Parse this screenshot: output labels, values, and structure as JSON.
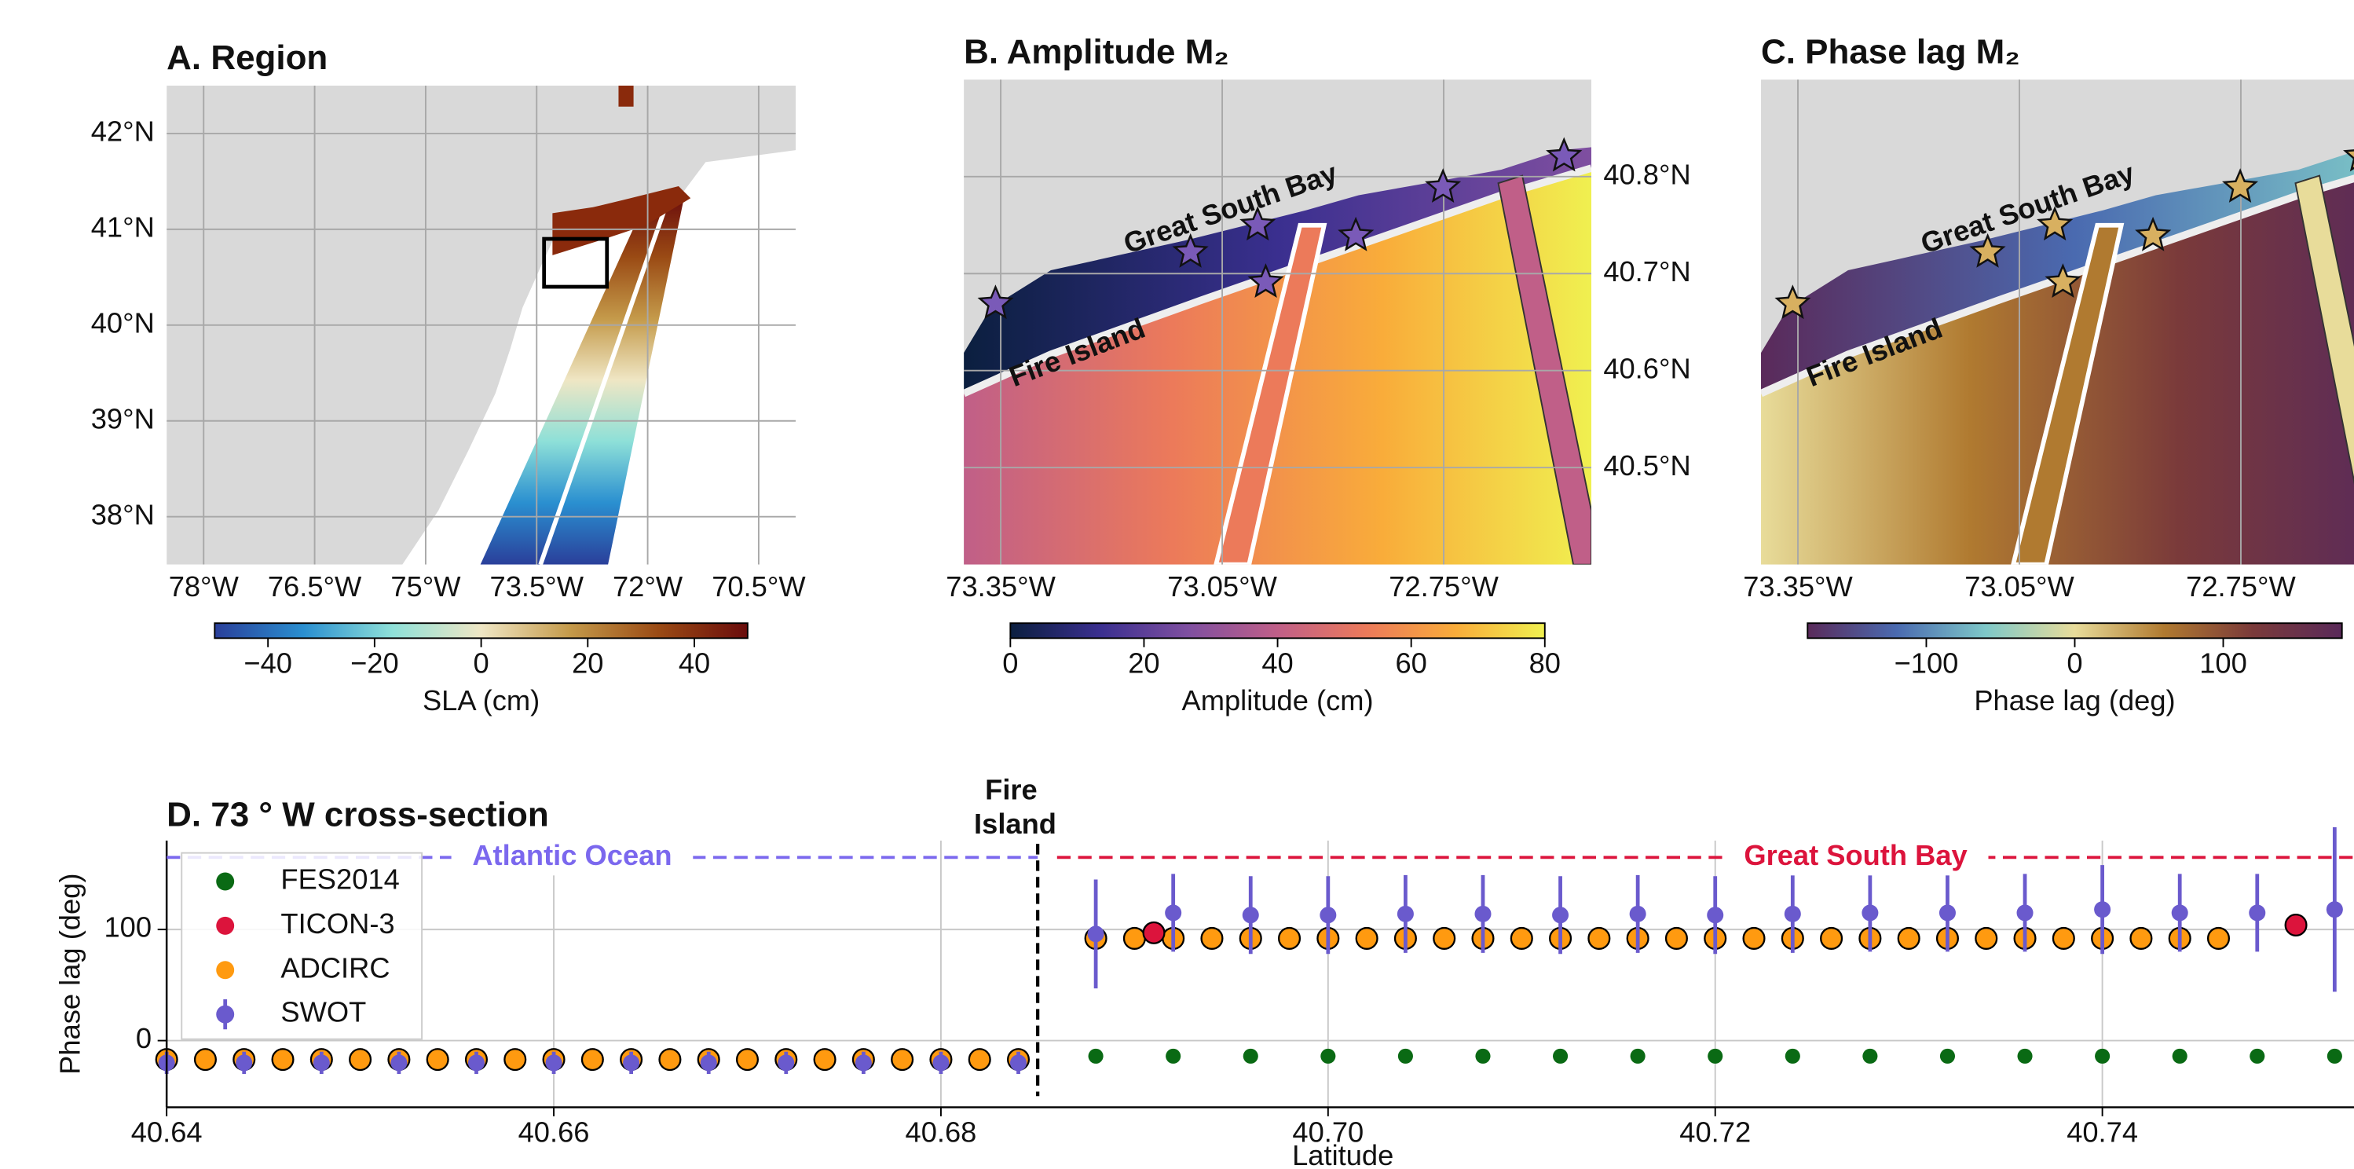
{
  "chart_data": [
    {
      "type": "map",
      "title": "A. Region",
      "xlim": [
        -78.5,
        -70
      ],
      "ylim": [
        37.5,
        42.5
      ],
      "xticks": [
        {
          "value": -78,
          "label": "78°W"
        },
        {
          "value": -76.5,
          "label": "76.5°W"
        },
        {
          "value": -75,
          "label": "75°W"
        },
        {
          "value": -73.5,
          "label": "73.5°W"
        },
        {
          "value": -72,
          "label": "72°W"
        },
        {
          "value": -70.5,
          "label": "70.5°W"
        }
      ],
      "yticks": [
        {
          "value": 42,
          "label": "42°N"
        },
        {
          "value": 41,
          "label": "41°N"
        },
        {
          "value": 40,
          "label": "40°N"
        },
        {
          "value": 39,
          "label": "39°N"
        },
        {
          "value": 38,
          "label": "38°N"
        }
      ],
      "colorbar_label": "SLA (cm)",
      "clim": [
        -50,
        50
      ],
      "cticks": [
        {
          "value": -40,
          "label": "−40"
        },
        {
          "value": -20,
          "label": "−20"
        },
        0,
        20,
        40
      ],
      "colormap": [
        "#2a3f9a",
        "#2a8fd0",
        "#8ee0d8",
        "#efe6c4",
        "#c49a4a",
        "#9a4a14",
        "#6a0c0c"
      ]
    },
    {
      "type": "map",
      "title": "B. Amplitude M₂",
      "xlim": [
        -73.4,
        -72.55
      ],
      "ylim": [
        40.4,
        40.9
      ],
      "xticks": [
        {
          "value": -73.35,
          "label": "73.35°W"
        },
        {
          "value": -73.05,
          "label": "73.05°W"
        },
        {
          "value": -72.75,
          "label": "72.75°W"
        }
      ],
      "yticks": [
        {
          "value": 40.8,
          "label": "40.8°N"
        },
        {
          "value": 40.7,
          "label": "40.7°N"
        },
        {
          "value": 40.6,
          "label": "40.6°N"
        },
        {
          "value": 40.5,
          "label": "40.5°N"
        }
      ],
      "colorbar_label": "Amplitude (cm)",
      "clim": [
        0,
        80
      ],
      "cticks": [
        0,
        20,
        40,
        60,
        80
      ],
      "colormap": [
        "#0b1f3f",
        "#3a2f8f",
        "#7f4fa0",
        "#c05f88",
        "#ec7a5a",
        "#f9ac3a",
        "#f0f050"
      ],
      "annotations": [
        "Great South Bay",
        "Fire Island"
      ],
      "stations": {
        "lon": [
          -73.357,
          -73.093,
          -73.002,
          -72.991,
          -72.869,
          -72.751,
          -72.587
        ],
        "lat": [
          40.669,
          40.722,
          40.75,
          40.691,
          40.739,
          40.789,
          40.821
        ]
      },
      "station_color": "#7a5ab8"
    },
    {
      "type": "map",
      "title": "C. Phase lag M₂",
      "xlim": [
        -73.4,
        -72.55
      ],
      "ylim": [
        40.4,
        40.9
      ],
      "xticks": [
        {
          "value": -73.35,
          "label": "73.35°W"
        },
        {
          "value": -73.05,
          "label": "73.05°W"
        },
        {
          "value": -72.75,
          "label": "72.75°W"
        }
      ],
      "colorbar_label": "Phase lag (deg)",
      "clim": [
        -180,
        180
      ],
      "cticks": [
        {
          "value": -100,
          "label": "−100"
        },
        0,
        100
      ],
      "colormap": [
        "#5a2a5a",
        "#4a6ab0",
        "#7ec8c8",
        "#e8dc9a",
        "#b07a30",
        "#7a3a3a",
        "#5a2a5a"
      ],
      "annotations": [
        "Great South Bay",
        "Fire Island"
      ],
      "stations": {
        "lon": [
          -73.357,
          -73.093,
          -73.002,
          -72.991,
          -72.869,
          -72.751,
          -72.587
        ],
        "lat": [
          40.669,
          40.722,
          40.75,
          40.691,
          40.739,
          40.789,
          40.821
        ]
      },
      "station_color": "#d8b060"
    },
    {
      "type": "scatter",
      "title": "D. 73 ° W cross-section",
      "xlabel": "Latitude",
      "ylabel": "Phase lag (deg)",
      "xlim": [
        40.64,
        40.753
      ],
      "ylim": [
        -60,
        180
      ],
      "xticks": [
        {
          "value": 40.64,
          "label": "40.64"
        },
        {
          "value": 40.66,
          "label": "40.66"
        },
        {
          "value": 40.68,
          "label": "40.68"
        },
        {
          "value": 40.7,
          "label": "40.70"
        },
        {
          "value": 40.72,
          "label": "40.72"
        },
        {
          "value": 40.74,
          "label": "40.74"
        }
      ],
      "yticks": [
        0,
        100
      ],
      "grid": true,
      "legend": "upper left",
      "divider": {
        "x": 40.685,
        "label": "Fire Island"
      },
      "regions": [
        {
          "label": "Atlantic Ocean",
          "color": "#7b68ee",
          "from": 40.64,
          "to": 40.685
        },
        {
          "label": "Great South Bay",
          "color": "#dc143c",
          "from": 40.686,
          "to": 40.753
        }
      ],
      "series": [
        {
          "name": "FES2014",
          "color": "#0a6a14",
          "x": [
            40.688,
            40.692,
            40.696,
            40.7,
            40.704,
            40.708,
            40.712,
            40.716,
            40.72,
            40.724,
            40.728,
            40.732,
            40.736,
            40.74,
            40.744,
            40.748,
            40.752
          ],
          "values": [
            -14,
            -14,
            -14,
            -14,
            -14,
            -14,
            -14,
            -14,
            -14,
            -14,
            -14,
            -14,
            -14,
            -14,
            -14,
            -14,
            -14
          ]
        },
        {
          "name": "TICON-3",
          "color": "#dc143c",
          "x": [
            40.691,
            40.75
          ],
          "values": [
            97,
            104
          ]
        },
        {
          "name": "ADCIRC",
          "color": "#ff9a10",
          "x": [
            40.64,
            40.642,
            40.644,
            40.646,
            40.648,
            40.65,
            40.652,
            40.654,
            40.656,
            40.658,
            40.66,
            40.662,
            40.664,
            40.666,
            40.668,
            40.67,
            40.672,
            40.674,
            40.676,
            40.678,
            40.68,
            40.682,
            40.684,
            40.688,
            40.69,
            40.692,
            40.694,
            40.696,
            40.698,
            40.7,
            40.702,
            40.704,
            40.706,
            40.708,
            40.71,
            40.712,
            40.714,
            40.716,
            40.718,
            40.72,
            40.722,
            40.724,
            40.726,
            40.728,
            40.73,
            40.732,
            40.734,
            40.736,
            40.738,
            40.74,
            40.742,
            40.744,
            40.746
          ],
          "values": [
            -17,
            -17,
            -17,
            -17,
            -17,
            -17,
            -17,
            -17,
            -17,
            -17,
            -17,
            -17,
            -17,
            -17,
            -17,
            -17,
            -17,
            -17,
            -17,
            -17,
            -17,
            -17,
            -17,
            92,
            92,
            92,
            92,
            92,
            92,
            92,
            92,
            92,
            92,
            92,
            92,
            92,
            92,
            92,
            92,
            92,
            92,
            92,
            92,
            92,
            92,
            92,
            92,
            92,
            92,
            92,
            92,
            92,
            92
          ]
        },
        {
          "name": "SWOT",
          "color": "#6a5acd",
          "x": [
            40.64,
            40.644,
            40.648,
            40.652,
            40.656,
            40.66,
            40.664,
            40.668,
            40.672,
            40.676,
            40.68,
            40.684,
            40.688,
            40.692,
            40.696,
            40.7,
            40.704,
            40.708,
            40.712,
            40.716,
            40.72,
            40.724,
            40.728,
            40.732,
            40.736,
            40.74,
            40.744,
            40.748,
            40.752
          ],
          "values": [
            -20,
            -20,
            -20,
            -20,
            -20,
            -20,
            -20,
            -20,
            -20,
            -20,
            -20,
            -20,
            96,
            115,
            113,
            113,
            114,
            114,
            113,
            114,
            113,
            114,
            115,
            115,
            115,
            118,
            115,
            115,
            118
          ],
          "errors": [
            10,
            10,
            10,
            10,
            10,
            10,
            10,
            10,
            10,
            10,
            10,
            10,
            49,
            35,
            35,
            35,
            35,
            35,
            35,
            35,
            35,
            35,
            35,
            35,
            35,
            40,
            35,
            35,
            74
          ]
        }
      ]
    }
  ]
}
